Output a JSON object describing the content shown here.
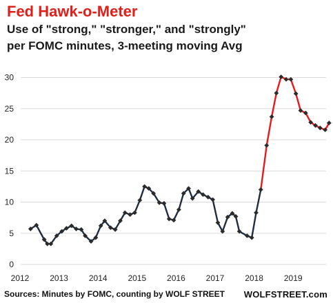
{
  "header": {
    "title": "Fed Hawk-o-Meter",
    "subtitle_line1": "Use of \"strong,\" \"stronger,\" and \"strongly\"",
    "subtitle_line2": "per FOMC minutes, 3-meeting moving Avg"
  },
  "footer": {
    "source": "Sources: Minutes by FOMC, counting by WOLF STREET",
    "brand": "WOLFSTREET.com"
  },
  "colors": {
    "series_main": "#1f2d44",
    "series_highlight": "#e8191c",
    "marker": "#2b2b2b",
    "grid": "#d9d9d9"
  },
  "chart_data": {
    "type": "line",
    "title": "Fed Hawk-o-Meter",
    "xlabel": "",
    "ylabel": "",
    "xlim": [
      2012,
      2019.9
    ],
    "ylim": [
      0,
      30
    ],
    "y_ticks": [
      0,
      5,
      10,
      15,
      20,
      25,
      30
    ],
    "x_ticks": [
      2012,
      2013,
      2014,
      2015,
      2016,
      2017,
      2018,
      2019
    ],
    "x_tick_labels": [
      "2012",
      "2013",
      "2014",
      "2015",
      "2016",
      "2017",
      "2018",
      "2019"
    ],
    "grid": "horizontal",
    "legend": "none",
    "highlight_from_index": 49,
    "x": [
      2012.2,
      2012.35,
      2012.55,
      2012.63,
      2012.72,
      2012.87,
      2013.0,
      2013.12,
      2013.25,
      2013.37,
      2013.5,
      2013.6,
      2013.75,
      2013.87,
      2014.0,
      2014.1,
      2014.25,
      2014.37,
      2014.5,
      2014.62,
      2014.75,
      2014.87,
      2015.0,
      2015.12,
      2015.23,
      2015.35,
      2015.5,
      2015.62,
      2015.75,
      2015.87,
      2016.0,
      2016.12,
      2016.25,
      2016.35,
      2016.5,
      2016.62,
      2016.75,
      2016.87,
      2017.0,
      2017.12,
      2017.25,
      2017.37,
      2017.46,
      2017.55,
      2017.75,
      2017.87,
      2017.98,
      2018.1,
      2018.25,
      2018.38,
      2018.5,
      2018.62,
      2018.75,
      2018.87,
      2019.0,
      2019.12,
      2019.25,
      2019.38,
      2019.5,
      2019.62,
      2019.75,
      2019.85
    ],
    "y": [
      5.7,
      6.3,
      4.0,
      3.3,
      3.3,
      4.6,
      5.3,
      5.8,
      6.2,
      5.7,
      5.6,
      4.6,
      3.7,
      4.3,
      6.2,
      7.0,
      5.9,
      5.6,
      7.0,
      8.3,
      8.0,
      8.3,
      10.3,
      12.5,
      12.2,
      11.4,
      9.9,
      9.8,
      7.3,
      7.1,
      8.8,
      11.4,
      12.2,
      10.6,
      11.7,
      11.2,
      10.8,
      10.4,
      6.7,
      5.3,
      7.6,
      8.2,
      7.7,
      5.3,
      4.6,
      4.3,
      8.3,
      12.0,
      19.1,
      23.7,
      27.5,
      30.1,
      29.7,
      29.7,
      27.4,
      24.7,
      24.3,
      22.8,
      22.3,
      21.9,
      21.6,
      22.7
    ]
  }
}
